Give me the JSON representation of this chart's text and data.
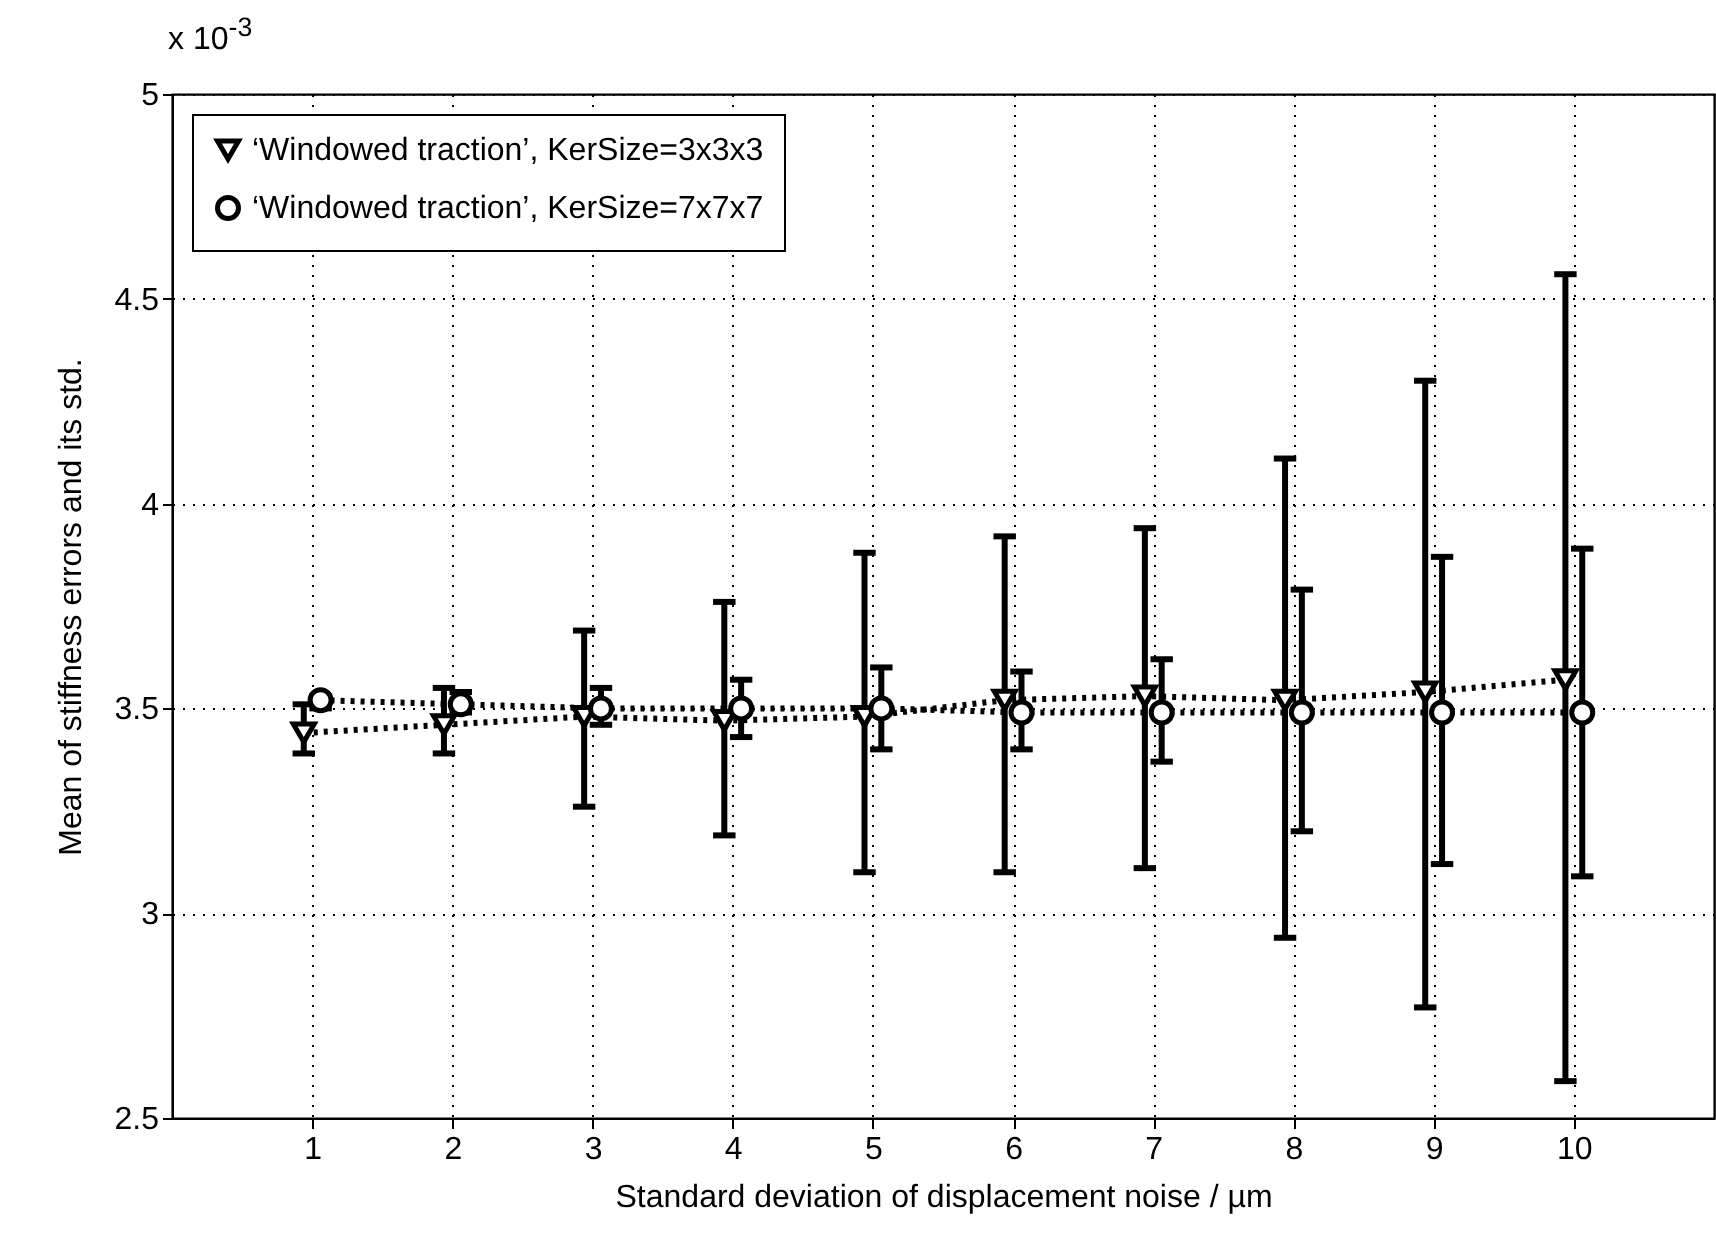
{
  "chart_data": {
    "type": "line",
    "xlabel": "Standard deviation of displacement noise / µm",
    "ylabel": "Mean of stiffness errors and its std.",
    "annotations": [
      "x 10$^{-3}$"
    ],
    "xlim": [
      0,
      11
    ],
    "xticks": [
      1,
      2,
      3,
      4,
      5,
      6,
      7,
      8,
      9,
      10
    ],
    "ylim": [
      2.5,
      5
    ],
    "yticks": [
      2.5,
      3,
      3.5,
      4,
      4.5,
      5
    ],
    "grid": true,
    "legend": "top left",
    "line_style": "dotted",
    "series": [
      {
        "name": "‘Windowed traction’, KerSize=3x3x3",
        "color": "#000000",
        "marker": "triangle",
        "x": [
          0.94,
          1.94,
          2.94,
          3.94,
          4.94,
          5.94,
          6.94,
          7.94,
          8.94,
          9.94
        ],
        "values": [
          3.44,
          3.46,
          3.48,
          3.47,
          3.48,
          3.52,
          3.53,
          3.52,
          3.54,
          3.57
        ],
        "errors": [
          [
            3.39,
            3.51
          ],
          [
            3.39,
            3.55
          ],
          [
            3.26,
            3.69
          ],
          [
            3.19,
            3.76
          ],
          [
            3.1,
            3.88
          ],
          [
            3.1,
            3.92
          ],
          [
            3.11,
            3.94
          ],
          [
            2.94,
            4.11
          ],
          [
            2.77,
            4.3
          ],
          [
            2.59,
            4.56
          ]
        ]
      },
      {
        "name": "‘Windowed traction’, KerSize=7x7x7",
        "color": "#000000",
        "marker": "circle",
        "x": [
          1.06,
          2.06,
          3.06,
          4.06,
          5.06,
          6.06,
          7.06,
          8.06,
          9.06,
          10.06
        ],
        "values": [
          3.52,
          3.51,
          3.5,
          3.5,
          3.5,
          3.49,
          3.49,
          3.49,
          3.49,
          3.49
        ],
        "errors": [
          [
            3.5,
            3.53
          ],
          [
            3.49,
            3.54
          ],
          [
            3.46,
            3.55
          ],
          [
            3.43,
            3.57
          ],
          [
            3.4,
            3.6
          ],
          [
            3.4,
            3.59
          ],
          [
            3.37,
            3.62
          ],
          [
            3.2,
            3.79
          ],
          [
            3.12,
            3.87
          ],
          [
            3.09,
            3.89
          ]
        ]
      }
    ]
  }
}
